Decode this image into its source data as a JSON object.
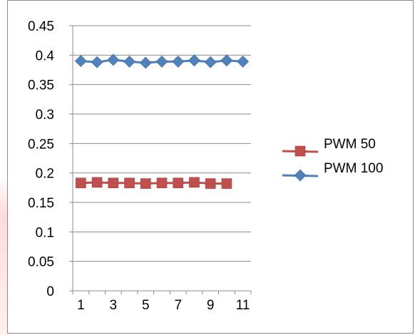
{
  "chart_data": {
    "type": "line",
    "title": "",
    "xlabel": "",
    "ylabel": "",
    "x": [
      1,
      2,
      3,
      4,
      5,
      6,
      7,
      8,
      9,
      10,
      11
    ],
    "x_tick_labels": [
      "1",
      "3",
      "5",
      "7",
      "9",
      "11"
    ],
    "y_tick_labels": [
      "0",
      "0.05",
      "0.1",
      "0.15",
      "0.2",
      "0.25",
      "0.3",
      "0.35",
      "0.4",
      "0.45"
    ],
    "ylim": [
      0,
      0.45
    ],
    "grid": "horizontal",
    "legend_position": "right",
    "series": [
      {
        "name": "PWM 50",
        "color": "#c0504d",
        "marker": "square",
        "x": [
          1,
          2,
          3,
          4,
          5,
          6,
          7,
          8,
          9,
          10
        ],
        "values": [
          0.183,
          0.184,
          0.183,
          0.183,
          0.182,
          0.183,
          0.183,
          0.184,
          0.182,
          0.182
        ]
      },
      {
        "name": "PWM 100",
        "color": "#4f81bd",
        "marker": "diamond",
        "x": [
          1,
          2,
          3,
          4,
          5,
          6,
          7,
          8,
          9,
          10,
          11
        ],
        "values": [
          0.39,
          0.388,
          0.392,
          0.389,
          0.387,
          0.389,
          0.389,
          0.391,
          0.388,
          0.391,
          0.389
        ]
      }
    ]
  }
}
